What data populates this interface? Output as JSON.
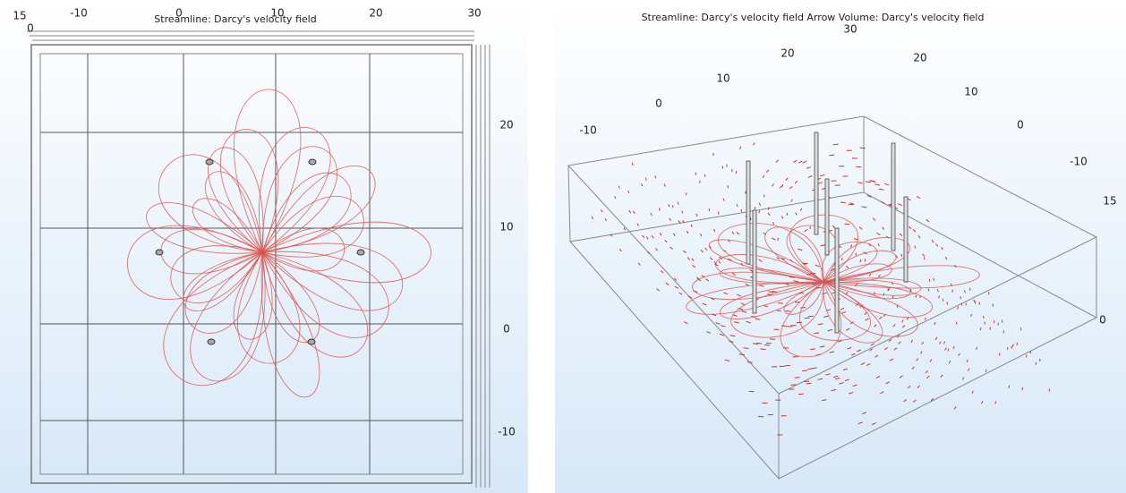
{
  "panels": [
    {
      "title": "Streamline: Darcy's velocity field",
      "top_ticks": [
        "15",
        "-10",
        "0",
        "10",
        "20",
        "30"
      ],
      "corner_tick": "0",
      "right_ticks": [
        "20",
        "10",
        "0",
        "-10"
      ]
    },
    {
      "title": "Streamline: Darcy's velocity field  Arrow Volume: Darcy's velocity field",
      "left_ticks": [
        "30",
        "20",
        "10",
        "0",
        "-10"
      ],
      "right_ticks": [
        "20",
        "10",
        "0",
        "-10"
      ],
      "depth_ticks": [
        "15",
        "0"
      ]
    }
  ]
}
